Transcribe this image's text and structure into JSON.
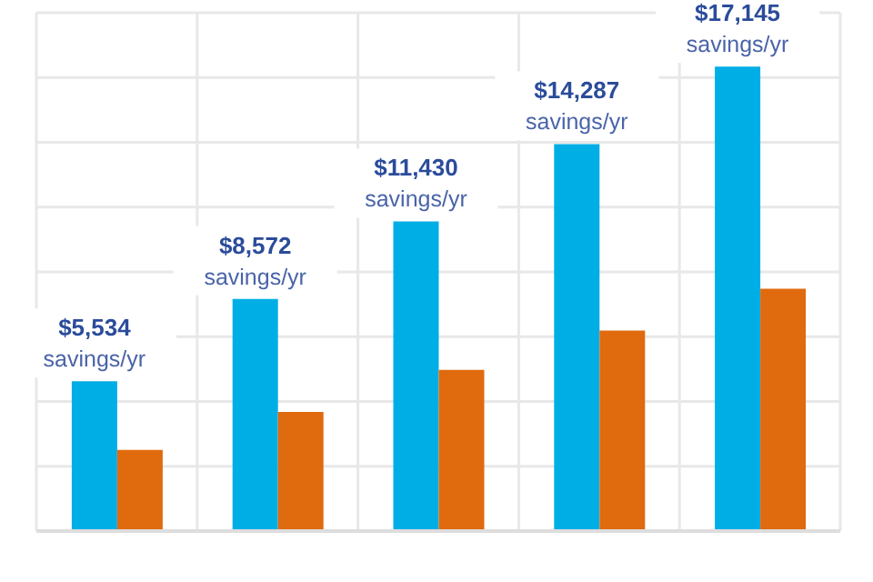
{
  "chart_data": {
    "type": "bar",
    "categories": [
      null,
      null,
      null,
      null,
      null
    ],
    "grid": true,
    "series": [
      {
        "color": "#00aee6",
        "values": [
          5534,
          8572,
          11430,
          14287,
          17145
        ],
        "value_labels": [
          "$5,534\nsavings/yr",
          "$8,572\nsavings/yr",
          "$11,430\nsavings/yr",
          "$14,287\nsavings/yr",
          "$17,145\nsavings/yr"
        ]
      },
      {
        "color": "#e06a0e",
        "values": [
          3000,
          4400,
          5950,
          7400,
          8950
        ]
      }
    ]
  }
}
